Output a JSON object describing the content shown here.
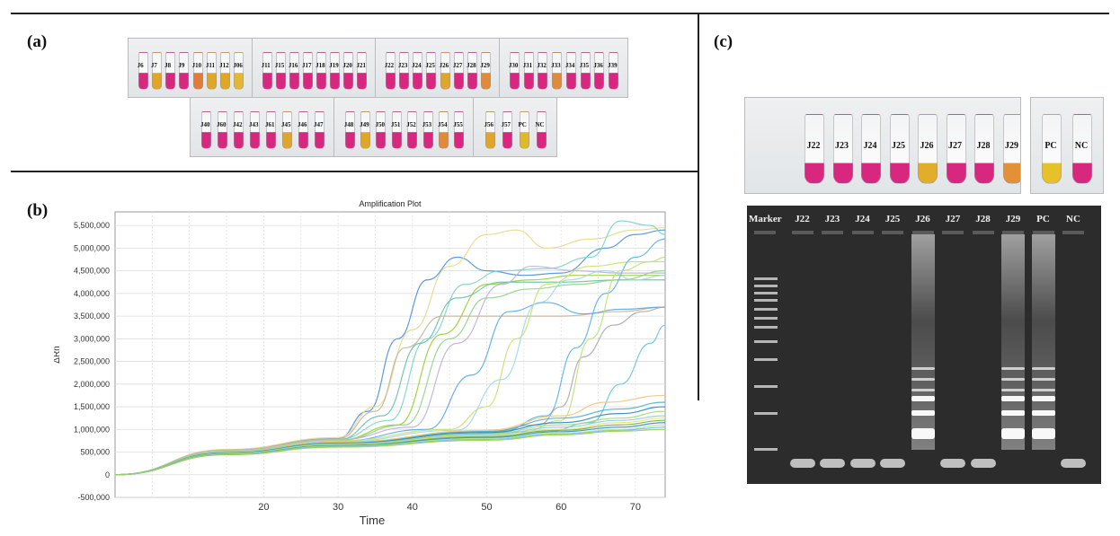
{
  "panels": {
    "a": "(a)",
    "b": "(b)",
    "c": "(c)"
  },
  "panel_a": {
    "strips": [
      {
        "labels": [
          "J6",
          "J7",
          "J8",
          "J9",
          "J10",
          "J11",
          "J12",
          "J06"
        ],
        "colors": [
          "#d7277f",
          "#e0a62a",
          "#d7277f",
          "#d7277f",
          "#e07c3a",
          "#e0a62a",
          "#e0a62a",
          "#e4b833"
        ]
      },
      {
        "labels": [
          "J11",
          "J15",
          "J16",
          "J17",
          "J18",
          "J19",
          "J20",
          "J21"
        ],
        "colors": [
          "#d7277f",
          "#d7277f",
          "#d7277f",
          "#d7277f",
          "#d7277f",
          "#d7277f",
          "#d7277f",
          "#d7277f"
        ]
      },
      {
        "labels": [
          "J22",
          "J23",
          "J24",
          "J25",
          "J26",
          "J27",
          "J28",
          "J29"
        ],
        "colors": [
          "#d7277f",
          "#d7277f",
          "#d7277f",
          "#d7277f",
          "#e0a62a",
          "#d7277f",
          "#d7277f",
          "#e08a3a"
        ]
      },
      {
        "labels": [
          "J30",
          "J31",
          "J32",
          "J33",
          "J34",
          "J35",
          "J36",
          "J39"
        ],
        "colors": [
          "#d7277f",
          "#d7277f",
          "#d7277f",
          "#e08a3a",
          "#d7277f",
          "#d7277f",
          "#d7277f",
          "#d7277f"
        ]
      },
      {
        "labels": [
          "J40",
          "J60",
          "J42",
          "J43",
          "J61",
          "J45",
          "J46",
          "J47"
        ],
        "colors": [
          "#d7277f",
          "#d7277f",
          "#d7277f",
          "#d7277f",
          "#d7277f",
          "#e0a62a",
          "#d7277f",
          "#d7277f"
        ]
      },
      {
        "labels": [
          "J48",
          "J49",
          "J50",
          "J51",
          "J52",
          "J53",
          "J54",
          "J55"
        ],
        "colors": [
          "#d7277f",
          "#e0a62a",
          "#d7277f",
          "#d7277f",
          "#d7277f",
          "#d7277f",
          "#e08a3a",
          "#d7277f"
        ]
      },
      {
        "labels": [
          "J56",
          "J57",
          "PC",
          "NC"
        ],
        "colors": [
          "#e0a62a",
          "#d7277f",
          "#e0b92a",
          "#d7277f"
        ]
      }
    ]
  },
  "chart_data": {
    "type": "line",
    "title": "Amplification Plot",
    "xlabel": "Time",
    "ylabel": "ΔRn",
    "xlim": [
      0,
      74
    ],
    "ylim": [
      -500000,
      5800000
    ],
    "x_ticks": [
      "20",
      "30",
      "40",
      "50",
      "60",
      "70"
    ],
    "y_ticks": [
      "5,500,000",
      "5,000,000",
      "4,500,000",
      "4,000,000",
      "3,500,000",
      "3,000,000",
      "2,500,000",
      "2,000,000",
      "1,500,000",
      "1,000,000",
      "500,000",
      "0",
      "-500,000"
    ],
    "grid": true,
    "series": [
      {
        "color": "#4a90d9",
        "points": [
          [
            0,
            0
          ],
          [
            15,
            550000
          ],
          [
            30,
            800000
          ],
          [
            34,
            1400000
          ],
          [
            38,
            3000000
          ],
          [
            42,
            4300000
          ],
          [
            46,
            4800000
          ],
          [
            50,
            4500000
          ],
          [
            55,
            4400000
          ],
          [
            60,
            4450000
          ],
          [
            66,
            5000000
          ],
          [
            70,
            5300000
          ],
          [
            74,
            5400000
          ]
        ]
      },
      {
        "color": "#e6d98a",
        "points": [
          [
            0,
            0
          ],
          [
            15,
            560000
          ],
          [
            30,
            820000
          ],
          [
            35,
            1500000
          ],
          [
            40,
            3200000
          ],
          [
            45,
            4600000
          ],
          [
            50,
            5300000
          ],
          [
            54,
            5400000
          ],
          [
            58,
            5000000
          ],
          [
            64,
            5200000
          ],
          [
            70,
            5400000
          ],
          [
            74,
            5450000
          ]
        ]
      },
      {
        "color": "#7dd3c7",
        "points": [
          [
            0,
            0
          ],
          [
            15,
            540000
          ],
          [
            30,
            780000
          ],
          [
            37,
            1200000
          ],
          [
            42,
            3000000
          ],
          [
            47,
            4200000
          ],
          [
            52,
            4500000
          ],
          [
            58,
            4550000
          ],
          [
            64,
            4800000
          ],
          [
            68,
            5600000
          ],
          [
            72,
            5500000
          ],
          [
            74,
            5300000
          ]
        ]
      },
      {
        "color": "#9acd32",
        "points": [
          [
            0,
            0
          ],
          [
            15,
            530000
          ],
          [
            30,
            760000
          ],
          [
            38,
            1100000
          ],
          [
            44,
            3100000
          ],
          [
            50,
            4200000
          ],
          [
            56,
            4300000
          ],
          [
            62,
            4400000
          ],
          [
            70,
            4400000
          ],
          [
            74,
            4400000
          ]
        ]
      },
      {
        "color": "#66c2a5",
        "points": [
          [
            0,
            0
          ],
          [
            15,
            520000
          ],
          [
            30,
            770000
          ],
          [
            36,
            1300000
          ],
          [
            41,
            2900000
          ],
          [
            46,
            3900000
          ],
          [
            52,
            4250000
          ],
          [
            60,
            4250000
          ],
          [
            68,
            4300000
          ],
          [
            74,
            4300000
          ]
        ]
      },
      {
        "color": "#c7b299",
        "points": [
          [
            0,
            0
          ],
          [
            15,
            540000
          ],
          [
            30,
            790000
          ],
          [
            35,
            1400000
          ],
          [
            39,
            2800000
          ],
          [
            44,
            3500000
          ],
          [
            50,
            3500000
          ],
          [
            60,
            3500000
          ],
          [
            68,
            3600000
          ],
          [
            74,
            3700000
          ]
        ]
      },
      {
        "color": "#8fd18a",
        "points": [
          [
            0,
            0
          ],
          [
            15,
            520000
          ],
          [
            30,
            760000
          ],
          [
            39,
            1100000
          ],
          [
            45,
            3000000
          ],
          [
            50,
            3900000
          ],
          [
            56,
            4100000
          ],
          [
            62,
            4200000
          ],
          [
            68,
            4300000
          ],
          [
            74,
            4500000
          ]
        ]
      },
      {
        "color": "#bdb0d9",
        "points": [
          [
            0,
            0
          ],
          [
            15,
            530000
          ],
          [
            30,
            770000
          ],
          [
            40,
            1050000
          ],
          [
            46,
            2900000
          ],
          [
            52,
            4200000
          ],
          [
            56,
            4600000
          ],
          [
            62,
            4500000
          ],
          [
            68,
            4450000
          ],
          [
            74,
            4450000
          ]
        ]
      },
      {
        "color": "#5aa9e6",
        "points": [
          [
            0,
            0
          ],
          [
            15,
            510000
          ],
          [
            30,
            740000
          ],
          [
            42,
            1000000
          ],
          [
            48,
            2200000
          ],
          [
            53,
            3600000
          ],
          [
            58,
            3800000
          ],
          [
            63,
            3550000
          ],
          [
            68,
            3650000
          ],
          [
            74,
            3700000
          ]
        ]
      },
      {
        "color": "#c8e06a",
        "points": [
          [
            0,
            0
          ],
          [
            15,
            520000
          ],
          [
            30,
            750000
          ],
          [
            45,
            1000000
          ],
          [
            50,
            1500000
          ],
          [
            54,
            3000000
          ],
          [
            58,
            4200000
          ],
          [
            64,
            4600000
          ],
          [
            70,
            4700000
          ],
          [
            74,
            4700000
          ]
        ]
      },
      {
        "color": "#9ed9e6",
        "points": [
          [
            0,
            0
          ],
          [
            15,
            510000
          ],
          [
            30,
            730000
          ],
          [
            46,
            980000
          ],
          [
            52,
            2100000
          ],
          [
            57,
            3800000
          ],
          [
            61,
            4300000
          ],
          [
            66,
            4500000
          ],
          [
            70,
            4300000
          ],
          [
            74,
            4400000
          ]
        ]
      },
      {
        "color": "#a9a9a9",
        "points": [
          [
            0,
            0
          ],
          [
            15,
            500000
          ],
          [
            30,
            720000
          ],
          [
            50,
            960000
          ],
          [
            57,
            1100000
          ],
          [
            60,
            1500000
          ],
          [
            63,
            2600000
          ],
          [
            67,
            3300000
          ],
          [
            71,
            3600000
          ],
          [
            74,
            3700000
          ]
        ]
      },
      {
        "color": "#5ab4e0",
        "points": [
          [
            0,
            0
          ],
          [
            15,
            505000
          ],
          [
            30,
            720000
          ],
          [
            52,
            960000
          ],
          [
            58,
            1300000
          ],
          [
            62,
            2800000
          ],
          [
            66,
            4000000
          ],
          [
            70,
            4800000
          ],
          [
            74,
            5200000
          ]
        ]
      },
      {
        "color": "#b9e27a",
        "points": [
          [
            0,
            0
          ],
          [
            15,
            500000
          ],
          [
            30,
            710000
          ],
          [
            55,
            950000
          ],
          [
            60,
            1200000
          ],
          [
            64,
            3000000
          ],
          [
            68,
            4500000
          ],
          [
            72,
            4700000
          ],
          [
            74,
            4800000
          ]
        ]
      },
      {
        "color": "#66c2e0",
        "points": [
          [
            0,
            0
          ],
          [
            15,
            495000
          ],
          [
            30,
            700000
          ],
          [
            58,
            950000
          ],
          [
            64,
            1150000
          ],
          [
            68,
            2000000
          ],
          [
            72,
            2900000
          ],
          [
            74,
            3300000
          ]
        ]
      },
      {
        "color": "#f0c674",
        "points": [
          [
            0,
            0
          ],
          [
            15,
            500000
          ],
          [
            30,
            720000
          ],
          [
            50,
            980000
          ],
          [
            60,
            1300000
          ],
          [
            66,
            1600000
          ],
          [
            74,
            1750000
          ]
        ]
      },
      {
        "color": "#4fb0c6",
        "points": [
          [
            0,
            0
          ],
          [
            15,
            490000
          ],
          [
            30,
            700000
          ],
          [
            50,
            950000
          ],
          [
            60,
            1250000
          ],
          [
            68,
            1450000
          ],
          [
            74,
            1600000
          ]
        ]
      },
      {
        "color": "#2e86c1",
        "points": [
          [
            0,
            0
          ],
          [
            15,
            480000
          ],
          [
            30,
            690000
          ],
          [
            50,
            930000
          ],
          [
            60,
            1150000
          ],
          [
            68,
            1350000
          ],
          [
            74,
            1500000
          ]
        ]
      },
      {
        "color": "#a3d977",
        "points": [
          [
            0,
            0
          ],
          [
            15,
            475000
          ],
          [
            30,
            680000
          ],
          [
            50,
            900000
          ],
          [
            60,
            1100000
          ],
          [
            68,
            1250000
          ],
          [
            74,
            1400000
          ]
        ]
      },
      {
        "color": "#8ecae6",
        "points": [
          [
            0,
            0
          ],
          [
            15,
            470000
          ],
          [
            30,
            670000
          ],
          [
            50,
            880000
          ],
          [
            60,
            1050000
          ],
          [
            68,
            1200000
          ],
          [
            74,
            1300000
          ]
        ]
      },
      {
        "color": "#e3e36a",
        "points": [
          [
            0,
            0
          ],
          [
            15,
            465000
          ],
          [
            30,
            660000
          ],
          [
            50,
            860000
          ],
          [
            60,
            1000000
          ],
          [
            68,
            1150000
          ],
          [
            74,
            1250000
          ]
        ]
      },
      {
        "color": "#6ab04c",
        "points": [
          [
            0,
            0
          ],
          [
            15,
            460000
          ],
          [
            30,
            650000
          ],
          [
            50,
            840000
          ],
          [
            60,
            980000
          ],
          [
            68,
            1100000
          ],
          [
            74,
            1200000
          ]
        ]
      },
      {
        "color": "#3c8dbc",
        "points": [
          [
            0,
            0
          ],
          [
            15,
            455000
          ],
          [
            30,
            640000
          ],
          [
            50,
            820000
          ],
          [
            60,
            950000
          ],
          [
            68,
            1050000
          ],
          [
            74,
            1150000
          ]
        ]
      },
      {
        "color": "#b8e986",
        "points": [
          [
            0,
            0
          ],
          [
            15,
            450000
          ],
          [
            30,
            630000
          ],
          [
            50,
            800000
          ],
          [
            60,
            920000
          ],
          [
            68,
            1000000
          ],
          [
            74,
            1100000
          ]
        ]
      },
      {
        "color": "#74b9ff",
        "points": [
          [
            0,
            0
          ],
          [
            15,
            445000
          ],
          [
            30,
            620000
          ],
          [
            50,
            780000
          ],
          [
            60,
            900000
          ],
          [
            68,
            980000
          ],
          [
            74,
            1050000
          ]
        ]
      },
      {
        "color": "#9bd14d",
        "points": [
          [
            0,
            0
          ],
          [
            15,
            440000
          ],
          [
            30,
            610000
          ],
          [
            50,
            760000
          ],
          [
            60,
            880000
          ],
          [
            68,
            960000
          ],
          [
            74,
            1000000
          ]
        ]
      }
    ]
  },
  "panel_c": {
    "top_tubes": {
      "labels": [
        "J22",
        "J23",
        "J24",
        "J25",
        "J26",
        "J27",
        "J28",
        "J29"
      ],
      "colors": [
        "#d7277f",
        "#d7277f",
        "#d7277f",
        "#d7277f",
        "#e2ad2b",
        "#d7277f",
        "#d7277f",
        "#e39036"
      ]
    },
    "control_tubes": {
      "labels": [
        "PC",
        "NC"
      ],
      "colors": [
        "#e6c12a",
        "#d7277f"
      ]
    },
    "gel": {
      "lanes": [
        "Marker",
        "J22",
        "J23",
        "J24",
        "J25",
        "J26",
        "J27",
        "J28",
        "J29",
        "PC",
        "NC"
      ],
      "positive": [
        false,
        false,
        false,
        false,
        true,
        false,
        false,
        true,
        true,
        false
      ]
    }
  }
}
